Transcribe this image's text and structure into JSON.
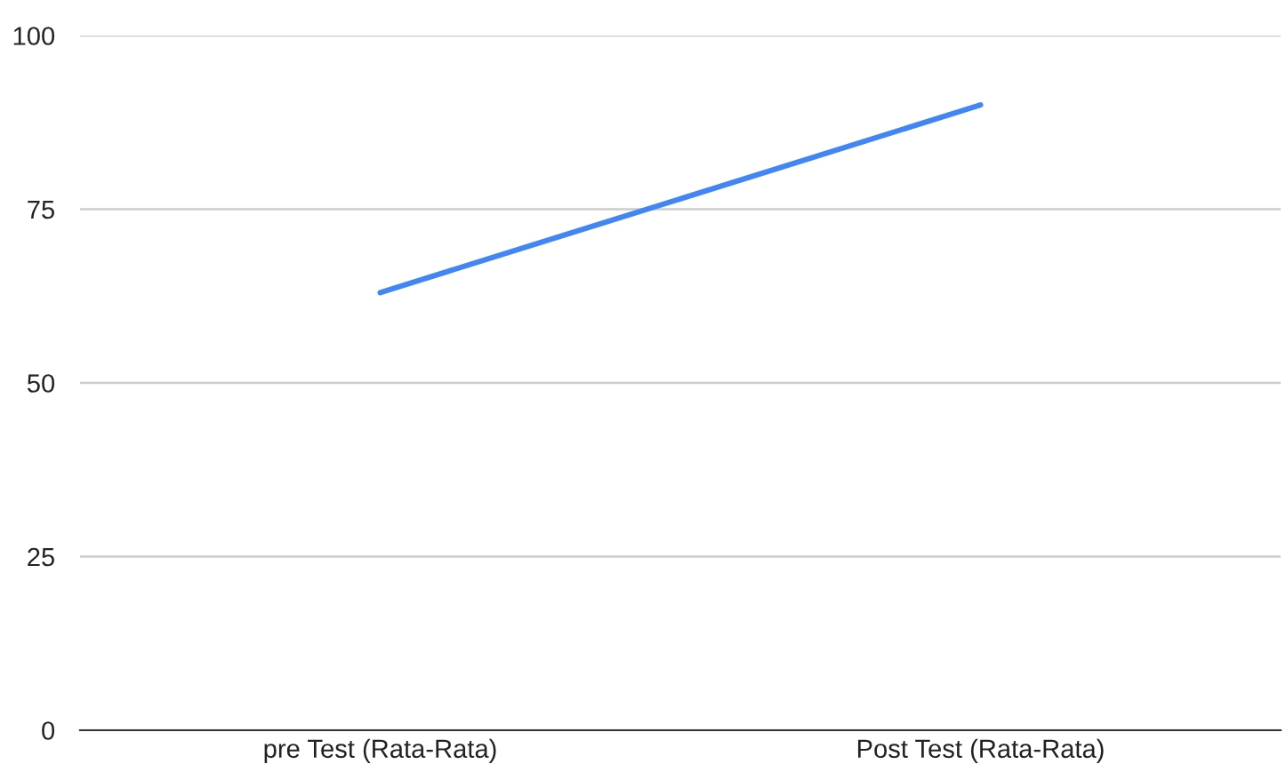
{
  "chart_data": {
    "type": "line",
    "categories": [
      "pre Test (Rata-Rata)",
      "Post Test (Rata-Rata)"
    ],
    "series": [
      {
        "color": "#4285f4",
        "values": [
          63,
          90
        ]
      }
    ],
    "ylim": [
      0,
      100
    ],
    "yticks": [
      0,
      25,
      50,
      75,
      100
    ],
    "grid": "y",
    "marker": "none",
    "line_style": "solid"
  }
}
